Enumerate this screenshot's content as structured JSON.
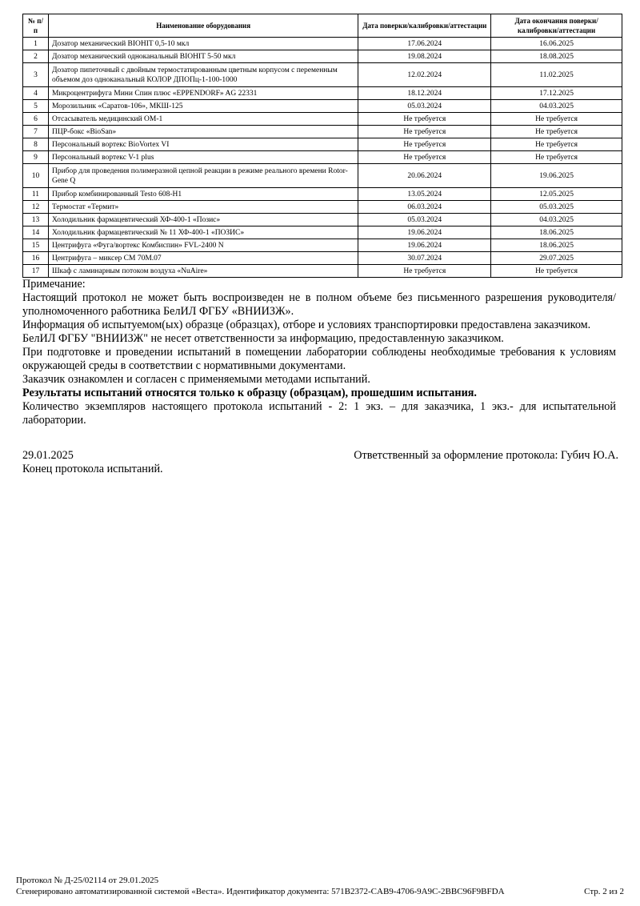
{
  "table": {
    "headers": [
      "№ п/п",
      "Наименование оборудования",
      "Дата поверки/калибровки/аттестации",
      "Дата окончания поверки/калибровки/аттестации"
    ],
    "rows": [
      [
        "1",
        "Дозатор механический BIOHIT 0,5-10 мкл",
        "17.06.2024",
        "16.06.2025"
      ],
      [
        "2",
        "Дозатор механический одноканальный BIOHIT 5-50 мкл",
        "19.08.2024",
        "18.08.2025"
      ],
      [
        "3",
        "Дозатор пипеточный с двойным термостатированным цветным корпусом с переменным объемом доз одноканальный КОЛОР ДПОПц-1-100-1000",
        "12.02.2024",
        "11.02.2025"
      ],
      [
        "4",
        "Микроцентрифуга Мини Спин плюс «EPPENDORF» AG 22331",
        "18.12.2024",
        "17.12.2025"
      ],
      [
        "5",
        "Морозильник «Саратов-106», МКШ-125",
        "05.03.2024",
        "04.03.2025"
      ],
      [
        "6",
        "Отсасыватель медицинский ОМ-1",
        "Не требуется",
        "Не требуется"
      ],
      [
        "7",
        "ПЦР-бокс «BioSan»",
        "Не требуется",
        "Не требуется"
      ],
      [
        "8",
        "Персональный вортекс BioVortex VI",
        "Не требуется",
        "Не требуется"
      ],
      [
        "9",
        "Персональный вортекс V-1 plus",
        "Не требуется",
        "Не требуется"
      ],
      [
        "10",
        "Прибор для проведения полимеразной цепной реакции в режиме реального времени Rotor-Gene Q",
        "20.06.2024",
        "19.06.2025"
      ],
      [
        "11",
        "Прибор комбинированный Testo 608-H1",
        "13.05.2024",
        "12.05.2025"
      ],
      [
        "12",
        "Термостат «Термит»",
        "06.03.2024",
        "05.03.2025"
      ],
      [
        "13",
        "Холодильник фармацевтический ХФ-400-1 «Позис»",
        "05.03.2024",
        "04.03.2025"
      ],
      [
        "14",
        "Холодильник фармацевтический № 11 ХФ-400-1 «ПОЗИС»",
        "19.06.2024",
        "18.06.2025"
      ],
      [
        "15",
        "Центрифуга «Фуга/вортекс Комбиспин» FVL-2400 N",
        "19.06.2024",
        "18.06.2025"
      ],
      [
        "16",
        "Центрифуга – миксер СМ 70М.07",
        "30.07.2024",
        "29.07.2025"
      ],
      [
        "17",
        "Шкаф с ламинарным потоком воздуха «NuAire»",
        "Не требуется",
        "Не требуется"
      ]
    ]
  },
  "notes": [
    "Примечание:",
    "Настоящий протокол не может быть воспроизведен не в полном объеме без письменного разрешения руководителя/уполномоченного работника БелИЛ ФГБУ «ВНИИЗЖ».",
    "Информация об испытуемом(ых) образце (образцах), отборе и условиях транспортировки предоставлена заказчиком.",
    "БелИЛ ФГБУ \"ВНИИЗЖ\" не несет ответственности за информацию, предоставленную заказчиком.",
    "При подготовке и проведении испытаний в помещении лаборатории соблюдены необходимые требования к условиям окружающей среды в соответствии с нормативными документами.",
    "Заказчик ознакомлен и согласен с применяемыми методами испытаний.",
    "Результаты испытаний относятся только к образцу (образцам), прошедшим испытания.",
    "Количество экземпляров настоящего протокола испытаний - 2: 1 экз. – для заказчика, 1 экз.- для испытательной лаборатории."
  ],
  "signature": {
    "date": "29.01.2025",
    "responsible": "Ответственный за оформление протокола: Губич Ю.А.",
    "end": "Конец протокола испытаний."
  },
  "footer": {
    "protocol": "Протокол № Д-25/02114 от 29.01.2025",
    "generated": "Сгенерировано автоматизированной системой «Веста». Идентификатор документа: 571B2372-CAB9-4706-9A9C-2BBC96F9BFDA",
    "page": "Стр. 2 из 2"
  }
}
